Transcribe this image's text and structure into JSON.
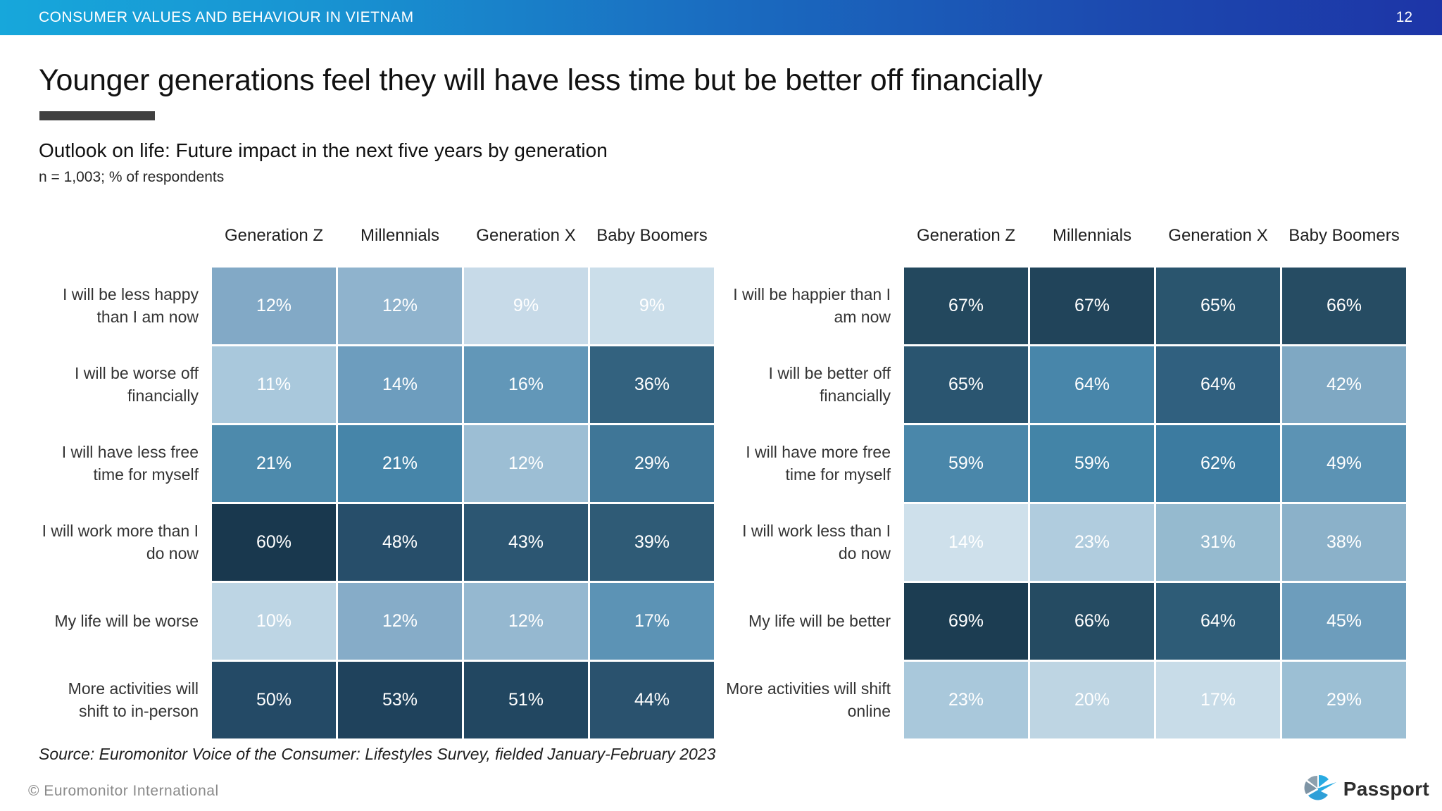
{
  "top_bar": {
    "title": "CONSUMER VALUES AND BEHAVIOUR IN VIETNAM",
    "page_number": "12",
    "gradient_left_color": "#17a7db",
    "gradient_right_color": "#1d35a7"
  },
  "headline": {
    "text": "Younger generations feel they will have less time but be better off financially",
    "accent_bar_color": "#404040"
  },
  "section": {
    "title": "Outlook on life: Future impact in the next five years by generation",
    "note": "n = 1,003; % of respondents"
  },
  "chart_data": [
    {
      "type": "heatmap",
      "id": "negative-outlook",
      "position": "left",
      "unit": "%",
      "columns": [
        "Generation Z",
        "Millennials",
        "Generation X",
        "Baby Boomers"
      ],
      "rows": [
        {
          "label": "I will be less happy than I am now",
          "values": [
            12,
            12,
            9,
            9
          ],
          "colors": [
            "#82A9C6",
            "#8FB3CD",
            "#C7DAE8",
            "#CBDEEA"
          ]
        },
        {
          "label": "I will be worse off financially",
          "values": [
            11,
            14,
            16,
            36
          ],
          "colors": [
            "#A9C8DC",
            "#6D9DBE",
            "#6297B8",
            "#33627F"
          ]
        },
        {
          "label": "I will have less free time for myself",
          "values": [
            21,
            21,
            12,
            29
          ],
          "colors": [
            "#4D8AAC",
            "#4685A9",
            "#9CBED4",
            "#3F7697"
          ]
        },
        {
          "label": "I will work more than I do now",
          "values": [
            60,
            48,
            43,
            39
          ],
          "colors": [
            "#19384E",
            "#274E6A",
            "#2C5672",
            "#2F5B76"
          ]
        },
        {
          "label": "My life will be worse",
          "values": [
            10,
            12,
            12,
            17
          ],
          "colors": [
            "#BDD5E4",
            "#86ACC8",
            "#95B8D0",
            "#5C93B5"
          ]
        },
        {
          "label": "More activities will shift to in-person",
          "values": [
            50,
            53,
            51,
            44
          ],
          "colors": [
            "#244A66",
            "#1F425C",
            "#224761",
            "#2A526E"
          ]
        }
      ]
    },
    {
      "type": "heatmap",
      "id": "positive-outlook",
      "position": "right",
      "unit": "%",
      "columns": [
        "Generation Z",
        "Millennials",
        "Generation X",
        "Baby Boomers"
      ],
      "rows": [
        {
          "label": "I will be happier than I am now",
          "values": [
            67,
            67,
            65,
            66
          ],
          "colors": [
            "#23485E",
            "#21445A",
            "#2A556E",
            "#264C63"
          ]
        },
        {
          "label": "I will be better off financially",
          "values": [
            65,
            64,
            64,
            42
          ],
          "colors": [
            "#2A5570",
            "#4886AA",
            "#30607F",
            "#7FA8C3"
          ]
        },
        {
          "label": "I will have more free time for myself",
          "values": [
            59,
            59,
            62,
            49
          ],
          "colors": [
            "#4A87AA",
            "#4384A7",
            "#3C7BA0",
            "#5C93B4"
          ]
        },
        {
          "label": "I will work less than I do now",
          "values": [
            14,
            23,
            31,
            38
          ],
          "colors": [
            "#CEE0EB",
            "#B0CCDE",
            "#95BACF",
            "#8BB1C9"
          ]
        },
        {
          "label": "My life will be better",
          "values": [
            69,
            66,
            64,
            45
          ],
          "colors": [
            "#1C3D52",
            "#254B62",
            "#2E5C77",
            "#6D9DBC"
          ]
        },
        {
          "label": "More activities will shift online",
          "values": [
            23,
            20,
            17,
            29
          ],
          "colors": [
            "#A9C8DB",
            "#BED5E3",
            "#C8DCE8",
            "#9CBFD4"
          ]
        }
      ]
    }
  ],
  "source": {
    "text": "Source: Euromonitor Voice of the Consumer: Lifestyles Survey, fielded January-February 2023"
  },
  "footer": {
    "copyright": "© Euromonitor International",
    "logo": {
      "text": "Passport",
      "icon_cyan": "#29ABE2",
      "icon_blue": "#2E9FD8",
      "icon_gray": "#8DA0AE",
      "icon_gray_dark": "#7E94A5"
    }
  }
}
